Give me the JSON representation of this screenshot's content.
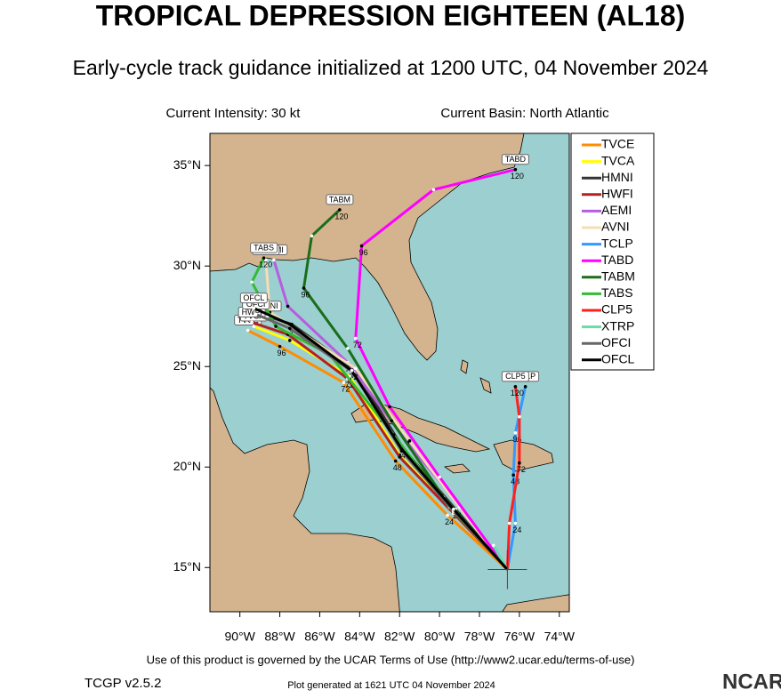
{
  "chart_data": {
    "type": "track-map",
    "title": "TROPICAL DEPRESSION EIGHTEEN (AL18)",
    "subtitle": "Early-cycle track guidance initialized at 1200 UTC, 04 November 2024",
    "intensity": "Current Intensity: 30 kt",
    "basin": "Current Basin: North Atlantic",
    "xlim": [
      -91.5,
      -73.5
    ],
    "ylim": [
      12.8,
      36.6
    ],
    "xticks": [
      {
        "value": -90,
        "label": "90°W"
      },
      {
        "value": -88,
        "label": "88°W"
      },
      {
        "value": -86,
        "label": "86°W"
      },
      {
        "value": -84,
        "label": "84°W"
      },
      {
        "value": -82,
        "label": "82°W"
      },
      {
        "value": -80,
        "label": "80°W"
      },
      {
        "value": -78,
        "label": "78°W"
      },
      {
        "value": -76,
        "label": "76°W"
      },
      {
        "value": -74,
        "label": "74°W"
      }
    ],
    "yticks": [
      {
        "value": 15,
        "label": "15°N"
      },
      {
        "value": 20,
        "label": "20°N"
      },
      {
        "value": 25,
        "label": "25°N"
      },
      {
        "value": 30,
        "label": "30°N"
      },
      {
        "value": 35,
        "label": "35°N"
      }
    ],
    "storm": {
      "lon": -76.6,
      "lat": 14.9
    },
    "series": [
      {
        "name": "TVCE",
        "color": "#ff8c00",
        "points": [
          {
            "lon": -76.6,
            "lat": 14.9
          },
          {
            "lon": -79.6,
            "lat": 17.6,
            "label": "24"
          },
          {
            "lon": -82.2,
            "lat": 20.3,
            "label": "48"
          },
          {
            "lon": -84.8,
            "lat": 24.2,
            "label": "72"
          },
          {
            "lon": -88,
            "lat": 26,
            "label": "96"
          },
          {
            "lon": -89.6,
            "lat": 26.8
          }
        ]
      },
      {
        "name": "TVCA",
        "color": "#ffff00",
        "points": [
          {
            "lon": -76.6,
            "lat": 14.9
          },
          {
            "lon": -79.4,
            "lat": 17.8
          },
          {
            "lon": -82,
            "lat": 20.6
          },
          {
            "lon": -84.5,
            "lat": 24.5
          },
          {
            "lon": -87.5,
            "lat": 26.3
          },
          {
            "lon": -89.3,
            "lat": 27
          }
        ]
      },
      {
        "name": "HMNI",
        "color": "#333333",
        "points": [
          {
            "lon": -76.6,
            "lat": 14.9
          },
          {
            "lon": -79.2,
            "lat": 17.9,
            "label": "24"
          },
          {
            "lon": -81.8,
            "lat": 20.9,
            "label": "48"
          },
          {
            "lon": -84.3,
            "lat": 24.9,
            "label": "72"
          },
          {
            "lon": -87.4,
            "lat": 27.1,
            "label": "96"
          },
          {
            "lon": -88.6,
            "lat": 27.5
          }
        ]
      },
      {
        "name": "HWFI",
        "color": "#b22222",
        "points": [
          {
            "lon": -76.6,
            "lat": 14.9
          },
          {
            "lon": -79.3,
            "lat": 17.7
          },
          {
            "lon": -82,
            "lat": 20.5
          },
          {
            "lon": -84.6,
            "lat": 24.4,
            "label": "72"
          },
          {
            "lon": -87.6,
            "lat": 26.6
          },
          {
            "lon": -89.4,
            "lat": 27.2
          }
        ]
      },
      {
        "name": "AEMI",
        "color": "#b65de0",
        "points": [
          {
            "lon": -76.6,
            "lat": 14.9
          },
          {
            "lon": -79,
            "lat": 18.1
          },
          {
            "lon": -81.6,
            "lat": 21.2
          },
          {
            "lon": -84.6,
            "lat": 25.2,
            "label": "72"
          },
          {
            "lon": -87.6,
            "lat": 28
          },
          {
            "lon": -88.3,
            "lat": 30.3
          }
        ]
      },
      {
        "name": "AVNI",
        "color": "#f5deb3",
        "points": [
          {
            "lon": -76.6,
            "lat": 14.9
          },
          {
            "lon": -79,
            "lat": 18
          },
          {
            "lon": -81.5,
            "lat": 21.3
          },
          {
            "lon": -84.2,
            "lat": 24.9
          },
          {
            "lon": -88.5,
            "lat": 27.7
          },
          {
            "lon": -88.7,
            "lat": 30.3
          }
        ]
      },
      {
        "name": "TCLP",
        "color": "#3399ff",
        "points": [
          {
            "lon": -76.6,
            "lat": 14.9
          },
          {
            "lon": -76.2,
            "lat": 17.2,
            "label": "24"
          },
          {
            "lon": -76.3,
            "lat": 19.6,
            "label": "48"
          },
          {
            "lon": -76.2,
            "lat": 21.7,
            "label": "96"
          },
          {
            "lon": -75.7,
            "lat": 24
          }
        ]
      },
      {
        "name": "TABD",
        "color": "#ff00ff",
        "points": [
          {
            "lon": -76.6,
            "lat": 14.9
          },
          {
            "lon": -80,
            "lat": 19.5
          },
          {
            "lon": -82.5,
            "lat": 23
          },
          {
            "lon": -84.2,
            "lat": 26.4,
            "label": "72"
          },
          {
            "lon": -83.9,
            "lat": 31,
            "label": "96"
          },
          {
            "lon": -80.3,
            "lat": 33.8
          },
          {
            "lon": -76.2,
            "lat": 34.8,
            "label": "120"
          }
        ]
      },
      {
        "name": "TABM",
        "color": "#1a6e1a",
        "points": [
          {
            "lon": -76.6,
            "lat": 14.9
          },
          {
            "lon": -79.8,
            "lat": 18.5
          },
          {
            "lon": -82.4,
            "lat": 22.3
          },
          {
            "lon": -84.6,
            "lat": 25.9
          },
          {
            "lon": -86.8,
            "lat": 28.9,
            "label": "96"
          },
          {
            "lon": -86.4,
            "lat": 31.5
          },
          {
            "lon": -85,
            "lat": 32.8,
            "label": "120"
          }
        ]
      },
      {
        "name": "TABS",
        "color": "#33bb33",
        "points": [
          {
            "lon": -76.6,
            "lat": 14.9
          },
          {
            "lon": -79.5,
            "lat": 18
          },
          {
            "lon": -82.3,
            "lat": 21.6
          },
          {
            "lon": -85.5,
            "lat": 25.6
          },
          {
            "lon": -88.2,
            "lat": 27
          },
          {
            "lon": -89.4,
            "lat": 29.2
          },
          {
            "lon": -88.8,
            "lat": 30.4,
            "label": "120"
          }
        ]
      },
      {
        "name": "CLP5",
        "color": "#ff2020",
        "points": [
          {
            "lon": -76.6,
            "lat": 14.9
          },
          {
            "lon": -76.5,
            "lat": 17.2
          },
          {
            "lon": -76,
            "lat": 20.2,
            "label": "72"
          },
          {
            "lon": -76,
            "lat": 22.5
          },
          {
            "lon": -76.2,
            "lat": 24,
            "label": "120"
          }
        ]
      },
      {
        "name": "XTRP",
        "color": "#66ddaa",
        "points": [
          {
            "lon": -76.6,
            "lat": 14.9
          },
          {
            "lon": -77.3,
            "lat": 16.1
          }
        ]
      },
      {
        "name": "OFCI",
        "color": "#666666",
        "points": [
          {
            "lon": -76.6,
            "lat": 14.9
          },
          {
            "lon": -79.3,
            "lat": 17.8
          },
          {
            "lon": -81.9,
            "lat": 20.8
          },
          {
            "lon": -84.3,
            "lat": 24.7
          },
          {
            "lon": -87.5,
            "lat": 26.9
          },
          {
            "lon": -89.2,
            "lat": 27.6
          }
        ]
      },
      {
        "name": "OFCL",
        "color": "#000000",
        "points": [
          {
            "lon": -76.6,
            "lat": 14.9
          },
          {
            "lon": -79.3,
            "lat": 17.9
          },
          {
            "lon": -81.9,
            "lat": 20.9
          },
          {
            "lon": -84.4,
            "lat": 24.8,
            "label": "72"
          },
          {
            "lon": -87.5,
            "lat": 27.1
          },
          {
            "lon": -89.3,
            "lat": 27.9
          }
        ]
      }
    ],
    "terms": "Use of this product is governed by the UCAR Terms of Use (http://www2.ucar.edu/terms-of-use)",
    "version": "TCGP v2.5.2",
    "generated": "Plot generated at 1621 UTC   04 November 2024",
    "logo": "NCAR"
  }
}
